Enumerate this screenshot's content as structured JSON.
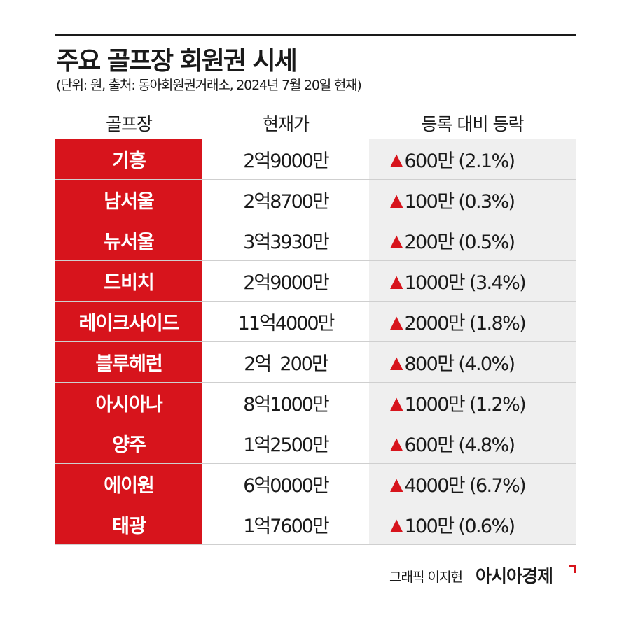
{
  "title": "주요 골프장 회원권 시세",
  "subtitle": "(단위: 원, 출처: 동아회원권거래소, 2024년 7월 20일 현재)",
  "chart_data": {
    "type": "table",
    "columns": [
      "골프장",
      "현재가",
      "등록 대비 등락"
    ],
    "rows": [
      {
        "name": "기흥",
        "price": "2억9000만",
        "change": "600만 (2.1%)"
      },
      {
        "name": "남서울",
        "price": "2억8700만",
        "change": "100만 (0.3%)"
      },
      {
        "name": "뉴서울",
        "price": "3억3930만",
        "change": "200만 (0.5%)"
      },
      {
        "name": "드비치",
        "price": "2억9000만",
        "change": "1000만 (3.4%)"
      },
      {
        "name": "레이크사이드",
        "price": "11억4000만",
        "change": "2000만 (1.8%)"
      },
      {
        "name": "블루헤런",
        "price": "2억  200만",
        "change": "800만 (4.0%)"
      },
      {
        "name": "아시아나",
        "price": "8억1000만",
        "change": "1000만 (1.2%)"
      },
      {
        "name": "양주",
        "price": "1억2500만",
        "change": "600만 (4.8%)"
      },
      {
        "name": "에이원",
        "price": "6억0000만",
        "change": "4000만 (6.7%)"
      },
      {
        "name": "태광",
        "price": "1억7600만",
        "change": "100만 (0.6%)"
      }
    ],
    "change_direction": "up",
    "change_icon": "triangle-up-icon"
  },
  "colors": {
    "accent_red": "#d7141c",
    "change_bg": "#efefef",
    "text": "#1a1a1a"
  },
  "footer": {
    "credit": "그래픽 이지현",
    "brand": "아시아경제"
  }
}
